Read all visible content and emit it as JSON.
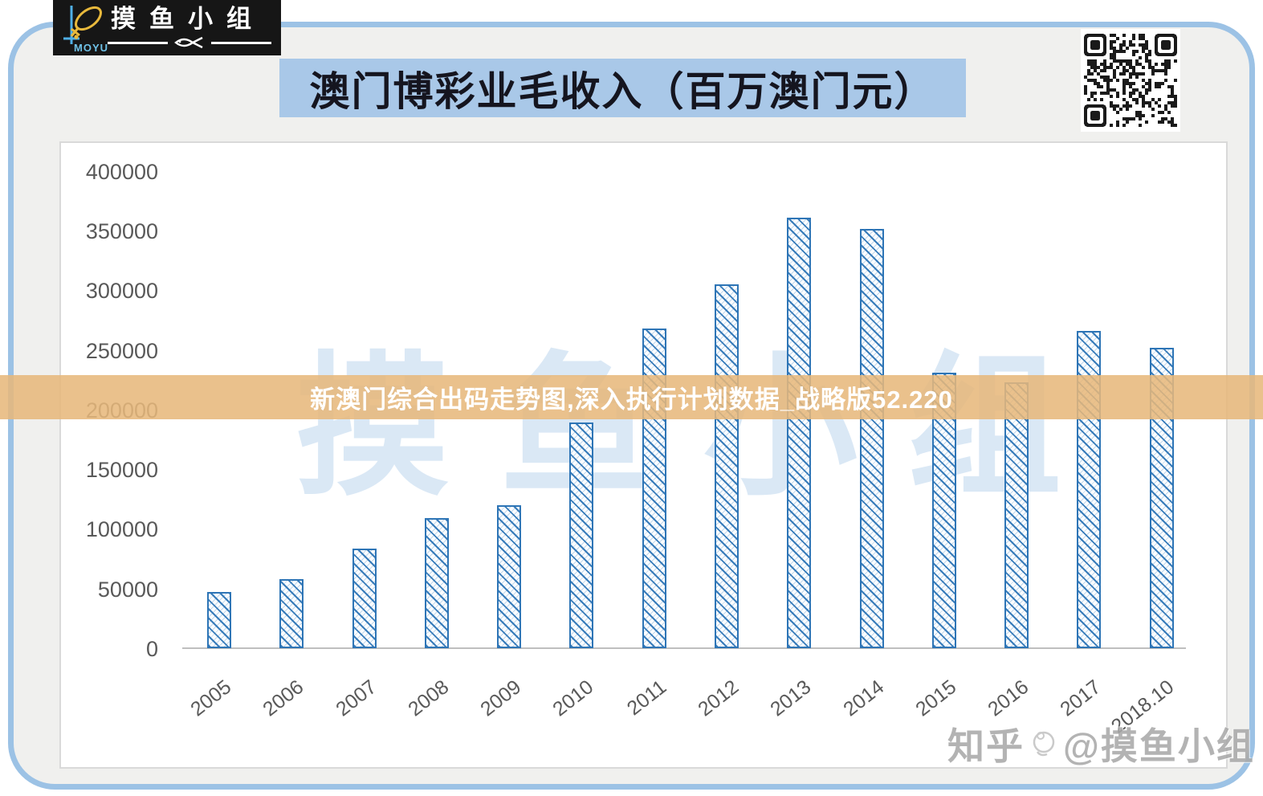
{
  "logo": {
    "brand_en": "MOYU",
    "brand_zh": "摸鱼小组"
  },
  "header": {
    "title": "澳门博彩业毛收入（百万澳门元）"
  },
  "overlay_banner": {
    "text": "新澳门综合出码走势图,深入执行计划数据_战略版52.220"
  },
  "watermarks": {
    "background_text": "摸鱼小组",
    "credit_prefix": "知乎",
    "credit_handle": "@摸鱼小组"
  },
  "icons": {
    "qr": "qr-code",
    "logo_fish": "fish-icon",
    "divider_fish": "fish-icon",
    "credit_doodle": "fish-doodle-icon"
  },
  "colors": {
    "accent_blue": "#2e75b6",
    "title_banner_bg": "#a9c8e8",
    "overlay_banner_bg": "#e7b87b",
    "frame_border": "#9cc2e5",
    "axis_text": "#595959",
    "watermark_blue": "#bcd6ee"
  },
  "chart_data": {
    "type": "bar",
    "title": "澳门博彩业毛收入（百万澳门元）",
    "categories": [
      "2005",
      "2006",
      "2007",
      "2008",
      "2009",
      "2010",
      "2011",
      "2012",
      "2013",
      "2014",
      "2015",
      "2016",
      "2017",
      "2018.10"
    ],
    "values": [
      47000,
      58000,
      83500,
      109000,
      120000,
      189000,
      268000,
      305000,
      361000,
      351000,
      231000,
      223000,
      266000,
      252000
    ],
    "xlabel": "",
    "ylabel": "",
    "ylim": [
      0,
      400000
    ],
    "yticks": [
      0,
      50000,
      100000,
      150000,
      200000,
      250000,
      300000,
      350000,
      400000
    ],
    "grid": false,
    "legend": null,
    "bar_style": "diagonal-hatch",
    "bar_color": "#2e75b6"
  }
}
